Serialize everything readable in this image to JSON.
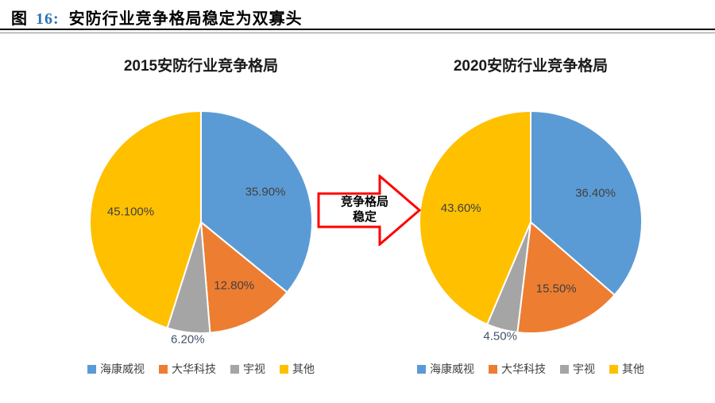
{
  "header": {
    "figure_label": "图",
    "figure_number": "16:",
    "title": "安防行业竞争格局稳定为双寡头"
  },
  "arrow": {
    "line1": "竞争格局",
    "line2": "稳定",
    "border_color": "#FF0000"
  },
  "chart_data": [
    {
      "type": "pie",
      "title": "2015安防行业竞争格局",
      "labels": [
        "海康威视",
        "大华科技",
        "宇视",
        "其他"
      ],
      "values": [
        35.9,
        12.8,
        6.2,
        45.1
      ],
      "display_labels": [
        "35.90%",
        "12.80%",
        "6.20%",
        "45.100%"
      ],
      "colors": [
        "#5B9BD5",
        "#ED7D31",
        "#A5A5A5",
        "#FFC000"
      ],
      "label_outside": [
        false,
        false,
        true,
        false
      ],
      "start_angle_deg": 0,
      "direction": "clockwise",
      "legend_position": "bottom"
    },
    {
      "type": "pie",
      "title": "2020安防行业竞争格局",
      "labels": [
        "海康威视",
        "大华科技",
        "宇视",
        "其他"
      ],
      "values": [
        36.4,
        15.5,
        4.5,
        43.6
      ],
      "display_labels": [
        "36.40%",
        "15.50%",
        "4.50%",
        "43.60%"
      ],
      "colors": [
        "#5B9BD5",
        "#ED7D31",
        "#A5A5A5",
        "#FFC000"
      ],
      "label_outside": [
        false,
        false,
        true,
        false
      ],
      "start_angle_deg": 0,
      "direction": "clockwise",
      "legend_position": "bottom"
    }
  ]
}
